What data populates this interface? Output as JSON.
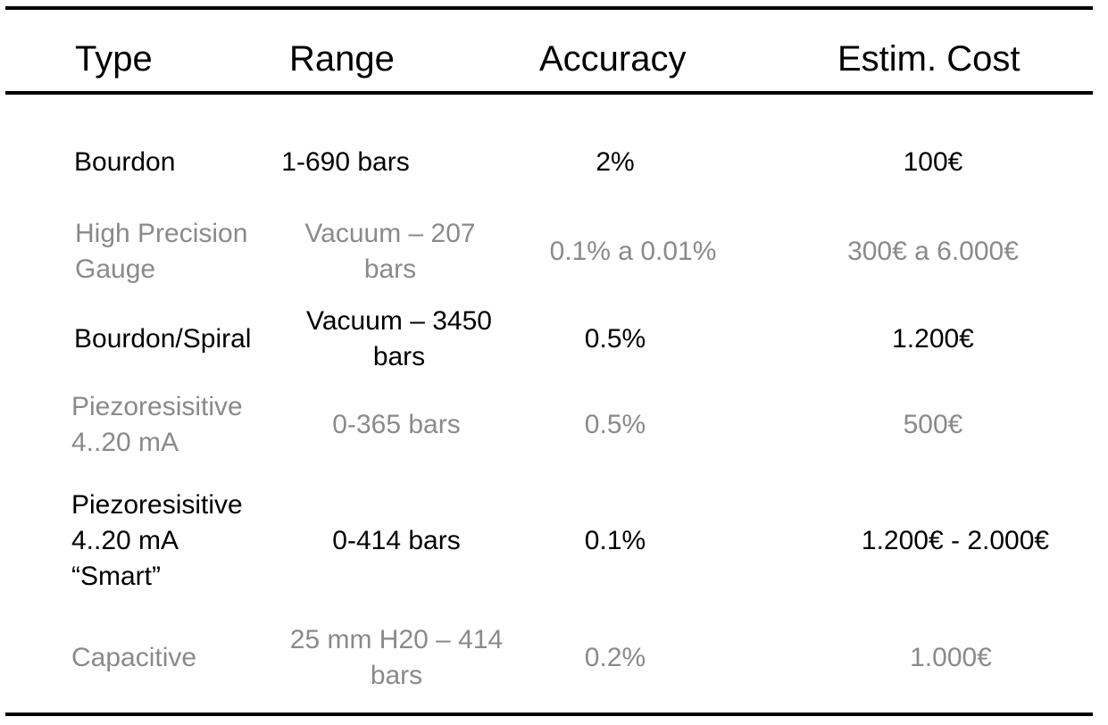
{
  "headers": {
    "type": "Type",
    "range": "Range",
    "accuracy": "Accuracy",
    "cost": "Estim. Cost"
  },
  "rows": [
    {
      "type": [
        "Bourdon"
      ],
      "range": [
        "1-690 bars"
      ],
      "accuracy": "2%",
      "cost": "100€"
    },
    {
      "type": [
        "High Precision",
        "Gauge"
      ],
      "range": [
        "Vacuum – 207",
        "bars"
      ],
      "accuracy": "0.1% a 0.01%",
      "cost": "300€ a 6.000€"
    },
    {
      "type": [
        "Bourdon/Spiral"
      ],
      "range": [
        "Vacuum – 3450",
        "bars"
      ],
      "accuracy": "0.5%",
      "cost": "1.200€"
    },
    {
      "type": [
        "Piezoresisitive",
        "4..20 mA"
      ],
      "range": [
        "0-365 bars"
      ],
      "accuracy": "0.5%",
      "cost": "500€"
    },
    {
      "type": [
        "Piezoresisitive",
        "4..20 mA",
        "“Smart”"
      ],
      "range": [
        "0-414 bars"
      ],
      "accuracy": "0.1%",
      "cost": "1.200€ - 2.000€"
    },
    {
      "type": [
        "Capacitive"
      ],
      "range": [
        "25 mm H20 – 414",
        "bars"
      ],
      "accuracy": "0.2%",
      "cost": "1.000€"
    }
  ]
}
